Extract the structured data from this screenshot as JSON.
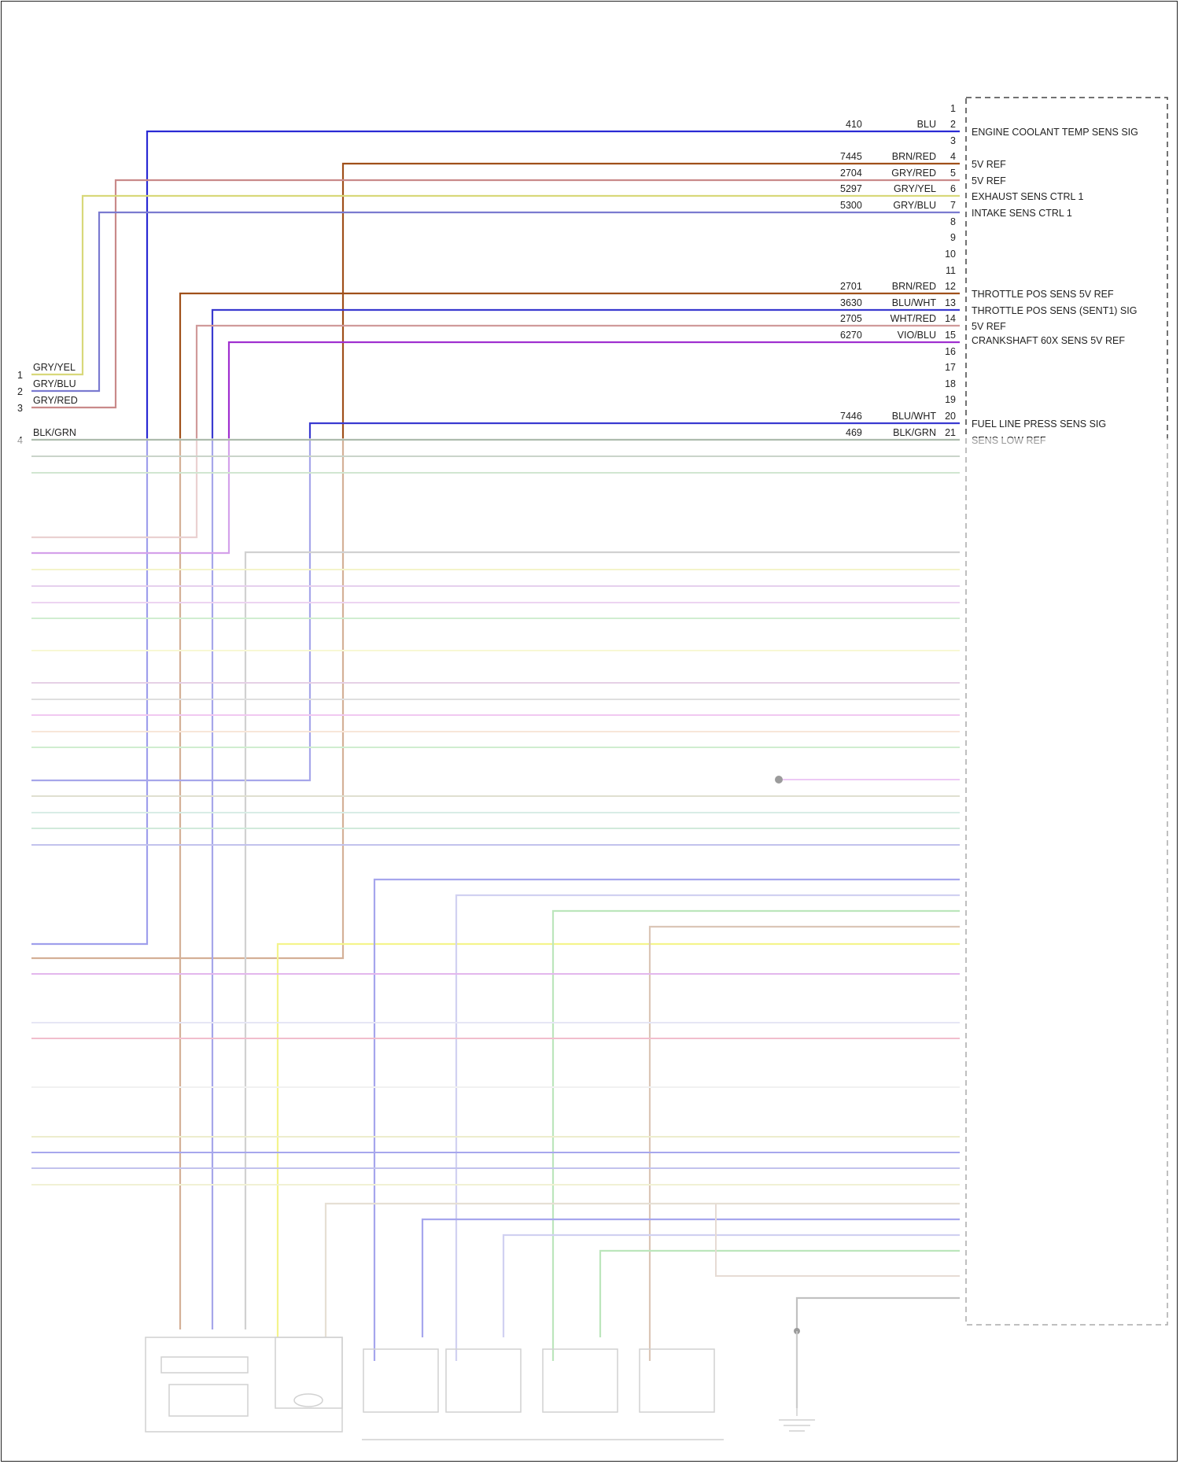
{
  "diagram": {
    "module_pins": [
      {
        "pin": "1"
      },
      {
        "pin": "2",
        "circuit": "410",
        "color": "BLU",
        "signal": "ENGINE COOLANT TEMP SENS SIG",
        "hex": "#2a2ad4"
      },
      {
        "pin": "3"
      },
      {
        "pin": "4",
        "circuit": "7445",
        "color": "BRN/RED",
        "signal": "5V REF",
        "hex": "#a0501a"
      },
      {
        "pin": "5",
        "circuit": "2704",
        "color": "GRY/RED",
        "signal": "5V REF",
        "hex": "#c98a8a"
      },
      {
        "pin": "6",
        "circuit": "5297",
        "color": "GRY/YEL",
        "signal": "EXHAUST SENS CTRL 1",
        "hex": "#d8d87a"
      },
      {
        "pin": "7",
        "circuit": "5300",
        "color": "GRY/BLU",
        "signal": "INTAKE SENS CTRL 1",
        "hex": "#7a7ad0"
      },
      {
        "pin": "8"
      },
      {
        "pin": "9"
      },
      {
        "pin": "10"
      },
      {
        "pin": "11"
      },
      {
        "pin": "12",
        "circuit": "2701",
        "color": "BRN/RED",
        "signal": "THROTTLE POS SENS 5V REF",
        "hex": "#a0501a"
      },
      {
        "pin": "13",
        "circuit": "3630",
        "color": "BLU/WHT",
        "signal": "THROTTLE POS SENS (SENT1) SIG",
        "hex": "#3a3ad0"
      },
      {
        "pin": "14",
        "circuit": "2705",
        "color": "WHT/RED",
        "signal": "5V REF",
        "hex": "#d09a9a"
      },
      {
        "pin": "15",
        "circuit": "6270",
        "color": "VIO/BLU",
        "signal": "CRANKSHAFT 60X SENS 5V REF",
        "hex": "#a030d0"
      },
      {
        "pin": "16"
      },
      {
        "pin": "17"
      },
      {
        "pin": "18"
      },
      {
        "pin": "19"
      },
      {
        "pin": "20",
        "circuit": "7446",
        "color": "BLU/WHT",
        "signal": "FUEL LINE PRESS SENS SIG",
        "hex": "#3a3ad0"
      },
      {
        "pin": "21",
        "circuit": "469",
        "color": "BLK/GRN",
        "signal": "SENS LOW REF",
        "hex": "#4a6a4a"
      }
    ],
    "left_connector": [
      {
        "pin": "1",
        "color": "GRY/YEL"
      },
      {
        "pin": "2",
        "color": "GRY/BLU"
      },
      {
        "pin": "3",
        "color": "GRY/RED"
      },
      {
        "pin": "4",
        "color": "BLK/GRN"
      }
    ]
  }
}
